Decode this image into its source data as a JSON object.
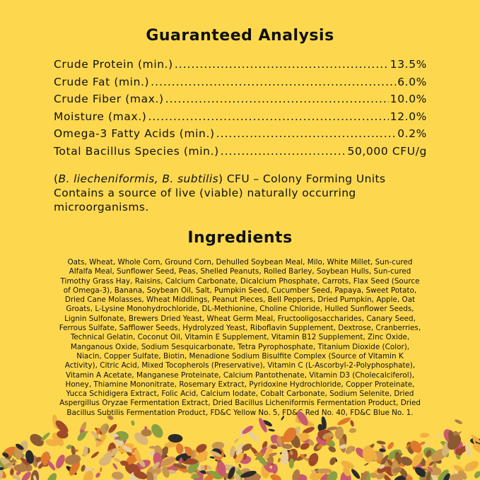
{
  "analysis": {
    "title": "Guaranteed Analysis",
    "rows": [
      {
        "label": "Crude Protein (min.)",
        "value": "13.5%"
      },
      {
        "label": "Crude Fat (min.)",
        "value": "6.0%"
      },
      {
        "label": "Crude Fiber (max.)",
        "value": "10.0%"
      },
      {
        "label": "Moisture (max.)",
        "value": "12.0%"
      },
      {
        "label": "Omega-3 Fatty Acids (min.)",
        "value": "0.2%"
      },
      {
        "label": "Total Bacillus Species (min.)",
        "value": "50,000 CFU/g"
      }
    ],
    "note_italic": "B. liecheniformis, B. subtilis",
    "note_rest": " CFU – Colony Forming Units",
    "note_line2": "Contains a source of live (viable) naturally occurring microorganisms."
  },
  "ingredients": {
    "title": "Ingredients",
    "lines": [
      "Oats, Wheat, Whole Corn, Ground Corn, Dehulled Soybean Meal, Milo, White Millet, Sun-cured",
      "Alfalfa Meal, Sunflower Seed, Peas, Shelled Peanuts, Rolled Barley, Soybean Hulls, Sun-cured",
      "Timothy Grass Hay, Raisins, Calcium Carbonate, Dicalcium Phosphate, Carrots, Flax Seed (Source",
      "of Omega-3), Banana, Soybean Oil, Salt, Pumpkin Seed, Cucumber Seed, Papaya, Sweet Potato,",
      "Dried Cane Molasses, Wheat Middlings, Peanut Pieces, Bell Peppers, Dried Pumpkin, Apple, Oat",
      "Groats, L-Lysine Monohydrochloride, DL-Methionine, Choline Chloride, Hulled Sunflower Seeds,",
      "Lignin Sulfonate, Brewers Dried Yeast, Wheat Germ Meal, Fructooligosaccharides, Canary Seed,",
      "Ferrous Sulfate, Safflower Seeds, Hydrolyzed Yeast, Riboflavin Supplement, Dextrose, Cranberries,",
      "Technical Gelatin, Coconut Oil, Vitamin E Supplement, Vitamin B12 Supplement, Zinc Oxide,",
      "Manganous Oxide, Sodium Sesquicarbonate, Tetra Pyrophosphate, Titanium Dioxide (Color),",
      "Niacin, Copper Sulfate, Biotin, Menadione Sodium Bisulfite Complex (Source of Vitamin K",
      "Activity), Citric Acid, Mixed Tocopherols (Preservative), Vitamin C (L-Ascorbyl-2-Polyphosphate),",
      "Vitamin A Acetate, Manganese Proteinate, Calcium Pantothenate, Vitamin D3 (Cholecalciferol),",
      "Honey, Thiamine Mononitrate, Rosemary Extract, Pyridoxine Hydrochloride, Copper Proteinate,",
      "Yucca Schidigera Extract, Folic Acid, Calcium Iodate, Cobalt Carbonate, Sodium Selenite, Dried",
      "Aspergillus Oryzae Fermentation Extract, Dried Bacillus Licheniformis Fermentation Product, Dried",
      "Bacillus Subtilis Fermentation Product, FD&C Yellow No. 5, FD&C Red No. 40, FD&C Blue No. 1."
    ]
  },
  "colors": {
    "background": "#fdd84f",
    "text": "#111111"
  },
  "image": "seed-and-pellet-mix-photo"
}
